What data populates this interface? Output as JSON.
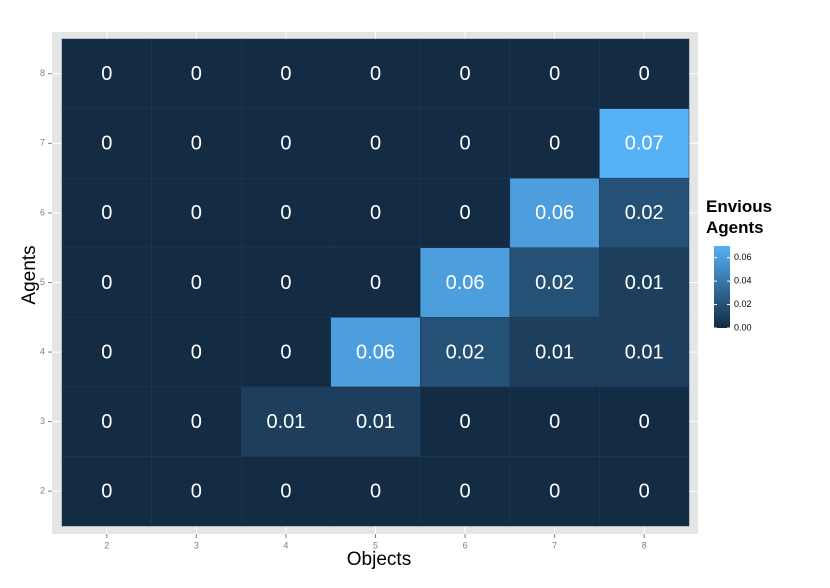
{
  "chart_data": {
    "type": "heatmap",
    "x_label": "Objects",
    "y_label": "Agents",
    "x": [
      2,
      3,
      4,
      5,
      6,
      7,
      8
    ],
    "y": [
      2,
      3,
      4,
      5,
      6,
      7,
      8
    ],
    "values": [
      [
        0,
        0,
        0,
        0,
        0,
        0,
        0
      ],
      [
        0,
        0,
        0.01,
        0.01,
        0,
        0,
        0
      ],
      [
        0,
        0,
        0,
        0.06,
        0.02,
        0.01,
        0.01
      ],
      [
        0,
        0,
        0,
        0,
        0.06,
        0.02,
        0.01
      ],
      [
        0,
        0,
        0,
        0,
        0,
        0.06,
        0.02
      ],
      [
        0,
        0,
        0,
        0,
        0,
        0,
        0.07
      ],
      [
        0,
        0,
        0,
        0,
        0,
        0,
        0
      ]
    ],
    "xlim": [
      1.5,
      8.5
    ],
    "ylim": [
      1.5,
      8.5
    ],
    "xticks": [
      2,
      3,
      4,
      5,
      6,
      7,
      8
    ],
    "yticks": [
      2,
      3,
      4,
      5,
      6,
      7,
      8
    ],
    "grid": true,
    "legend": {
      "title": "Envious Agents",
      "colors": [
        "#132B43",
        "#56B1F7"
      ],
      "range": [
        0,
        0.07
      ],
      "ticks": [
        {
          "value": 0,
          "label": "0.00"
        },
        {
          "value": 0.02,
          "label": "0.02"
        },
        {
          "value": 0.04,
          "label": "0.04"
        },
        {
          "value": 0.06,
          "label": "0.06"
        }
      ]
    }
  }
}
